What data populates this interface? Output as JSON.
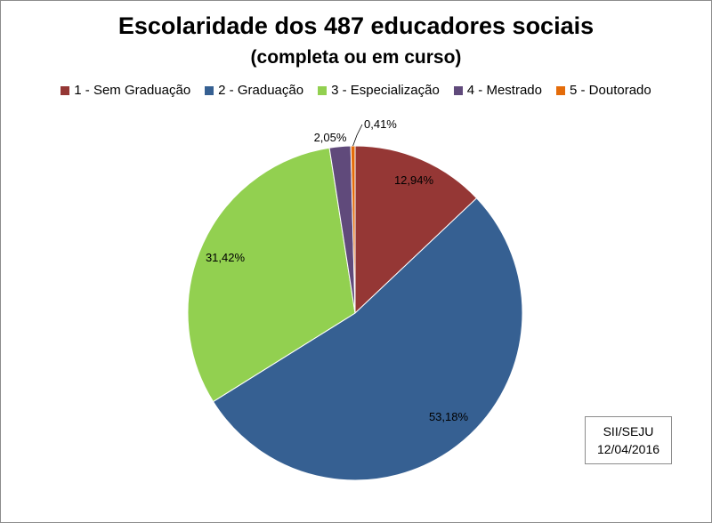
{
  "chart_data": {
    "type": "pie",
    "title": "Escolaridade dos 487 educadores sociais",
    "subtitle": "(completa ou em curso)",
    "legend_position": "top",
    "categories": [
      "1 - Sem Graduação",
      "2 - Graduação",
      "3 - Especialização",
      "4 - Mestrado",
      "5 - Doutorado"
    ],
    "values": [
      12.94,
      53.18,
      31.42,
      2.05,
      0.41
    ],
    "labels": [
      "12,94%",
      "53,18%",
      "31,42%",
      "2,05%",
      "0,41%"
    ],
    "colors": [
      "#953735",
      "#366092",
      "#92d050",
      "#604a7b",
      "#e46c0a"
    ]
  },
  "note": {
    "line1": "SII/SEJU",
    "line2": "12/04/2016"
  }
}
